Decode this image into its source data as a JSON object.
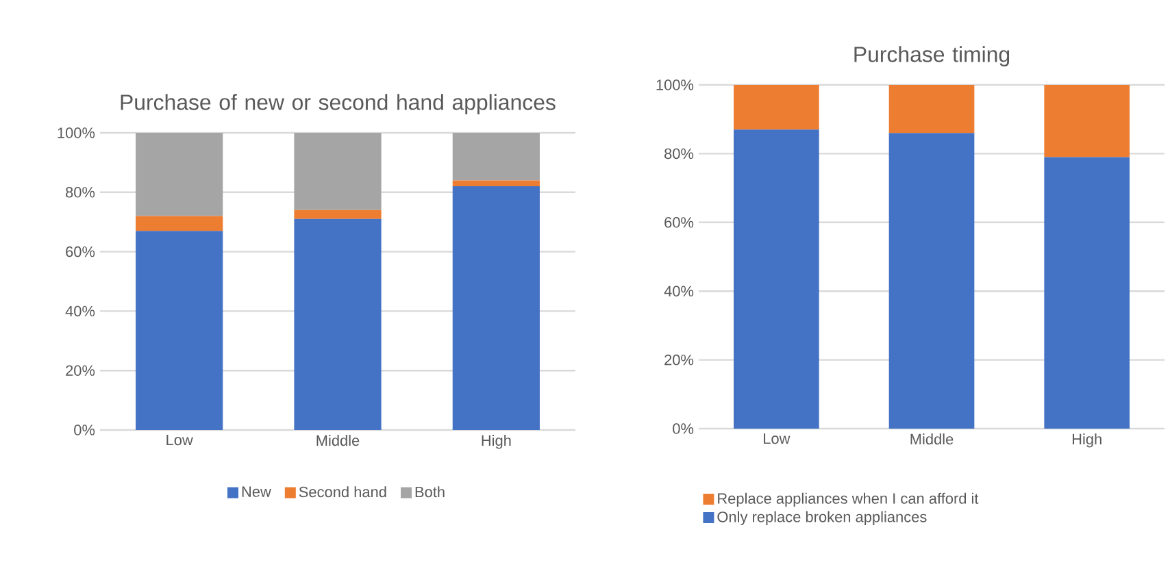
{
  "chart_data": [
    {
      "type": "bar",
      "title": "Purchase of new or second hand appliances",
      "stacked": true,
      "categories": [
        "Low",
        "Middle",
        "High"
      ],
      "series": [
        {
          "name": "New",
          "color": "#4472c4",
          "values": [
            67,
            71,
            82
          ]
        },
        {
          "name": "Second hand",
          "color": "#ed7d31",
          "values": [
            5,
            3,
            2
          ]
        },
        {
          "name": "Both",
          "color": "#a5a5a5",
          "values": [
            28,
            26,
            16
          ]
        }
      ],
      "ylim": [
        0,
        100
      ],
      "yticks": [
        {
          "value": 0,
          "label": "0%"
        },
        {
          "value": 20,
          "label": "20%"
        },
        {
          "value": 40,
          "label": "40%"
        },
        {
          "value": 60,
          "label": "60%"
        },
        {
          "value": 80,
          "label": "80%"
        },
        {
          "value": 100,
          "label": "100%"
        }
      ],
      "grid": "y",
      "legend": "bottom"
    },
    {
      "type": "bar",
      "title": "Purchase timing",
      "stacked": true,
      "categories": [
        "Low",
        "Middle",
        "High"
      ],
      "series": [
        {
          "name": "Only replace broken appliances",
          "color": "#4472c4",
          "values": [
            87,
            86,
            79
          ]
        },
        {
          "name": "Replace appliances when I can afford it",
          "color": "#ed7d31",
          "values": [
            13,
            14,
            21
          ]
        }
      ],
      "ylim": [
        0,
        100
      ],
      "yticks": [
        {
          "value": 0,
          "label": "0%"
        },
        {
          "value": 20,
          "label": "20%"
        },
        {
          "value": 40,
          "label": "40%"
        },
        {
          "value": 60,
          "label": "60%"
        },
        {
          "value": 80,
          "label": "80%"
        },
        {
          "value": 100,
          "label": "100%"
        }
      ],
      "grid": "y",
      "legend": "bottom left"
    }
  ]
}
